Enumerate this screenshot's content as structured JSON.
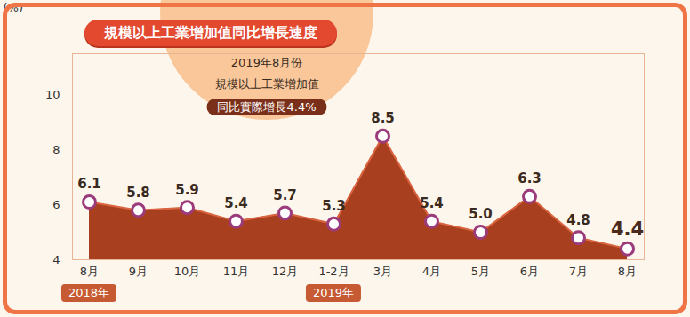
{
  "chart_data": {
    "type": "area",
    "title": "規模以上工業增加值同比增長速度",
    "y_label": "(%)",
    "annotation": [
      "2019年8月份",
      "規模以上工業增加值",
      "同比實際增長4.4%"
    ],
    "categories": [
      "8月",
      "9月",
      "10月",
      "11月",
      "12月",
      "1-2月",
      "3月",
      "4月",
      "5月",
      "6月",
      "7月",
      "8月"
    ],
    "x_group_labels": [
      "2018年",
      null,
      null,
      null,
      null,
      "2019年",
      null,
      null,
      null,
      null,
      null,
      null
    ],
    "values": [
      6.1,
      5.8,
      5.9,
      5.4,
      5.7,
      5.3,
      8.5,
      5.4,
      5.0,
      6.3,
      4.8,
      4.4
    ],
    "value_labels": [
      "6.1",
      "5.8",
      "5.9",
      "5.4",
      "5.7",
      "5.3",
      "8.5",
      "5.4",
      "5.0",
      "6.3",
      "4.8",
      "4.4"
    ],
    "color": "#a8401f",
    "ylim": [
      4,
      11.5
    ],
    "yticks": [
      4,
      6,
      8,
      10
    ],
    "grid": false,
    "data_labels": true
  }
}
